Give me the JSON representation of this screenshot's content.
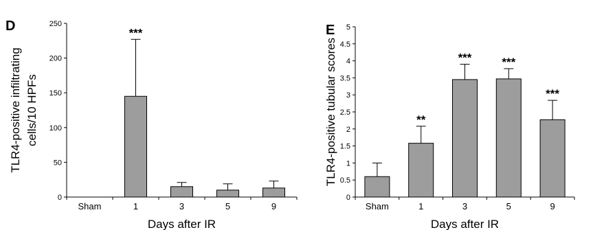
{
  "chart_data": [
    {
      "type": "bar",
      "panel": "D",
      "categories": [
        "Sham",
        "1",
        "3",
        "5",
        "9"
      ],
      "values": [
        0,
        145,
        15,
        10,
        13
      ],
      "error_upper": [
        0,
        82,
        6,
        9,
        10
      ],
      "significance": [
        "",
        "***",
        "",
        "",
        ""
      ],
      "xlabel": "Days after IR",
      "ylabel_lines": [
        "TLR4-positive infiltrating",
        "cells/10 HPFs"
      ],
      "ylim": [
        0,
        250
      ],
      "yticks": [
        "0",
        "50",
        "100",
        "150",
        "200",
        "250"
      ],
      "bar_color": "#9d9d9d"
    },
    {
      "type": "bar",
      "panel": "E",
      "categories": [
        "Sham",
        "1",
        "3",
        "5",
        "9"
      ],
      "values": [
        0.6,
        1.58,
        3.45,
        3.47,
        2.27
      ],
      "error_upper": [
        0.4,
        0.5,
        0.45,
        0.3,
        0.57
      ],
      "significance": [
        "",
        "**",
        "***",
        "***",
        "***"
      ],
      "xlabel": "Days after IR",
      "ylabel": "TLR4-positive tubular scores",
      "ylim": [
        0,
        5
      ],
      "yticks": [
        "0",
        "0.5",
        "1",
        "1.5",
        "2",
        "2.5",
        "3",
        "3.5",
        "4",
        "4.5",
        "5"
      ],
      "bar_color": "#9d9d9d"
    }
  ]
}
